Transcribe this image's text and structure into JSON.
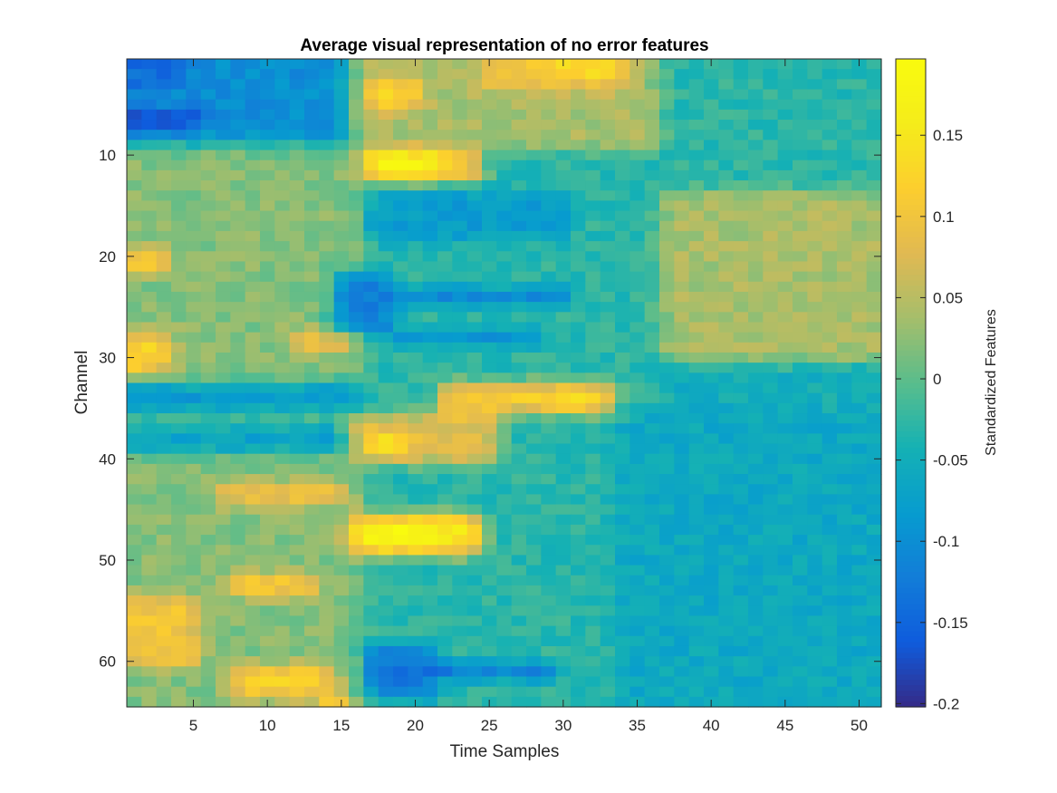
{
  "chart_data": {
    "type": "heatmap",
    "title": "Average visual representation of no error features",
    "xlabel": "Time Samples",
    "ylabel": "Channel",
    "colorbar_label": "Standardized Features",
    "xlim": [
      0.5,
      51.5
    ],
    "ylim": [
      0.5,
      64.5
    ],
    "x_ticks": [
      5,
      10,
      15,
      20,
      25,
      30,
      35,
      40,
      45,
      50
    ],
    "y_ticks": [
      10,
      20,
      30,
      40,
      50,
      60
    ],
    "clim": [
      -0.202,
      0.197
    ],
    "colorbar_ticks": [
      0.15,
      0.1,
      0.05,
      0,
      -0.05,
      -0.1,
      -0.15,
      -0.2
    ],
    "colormap": "parula",
    "n_channels": 64,
    "n_samples": 51,
    "grid": false,
    "features": [
      {
        "type": "base",
        "value": -0.03
      },
      {
        "type": "rect",
        "ch": [
          1,
          8
        ],
        "t": [
          1,
          15
        ],
        "value": -0.1
      },
      {
        "type": "rect",
        "ch": [
          6,
          7
        ],
        "t": [
          1,
          5
        ],
        "value": -0.19
      },
      {
        "type": "rect",
        "ch": [
          1,
          3
        ],
        "t": [
          1,
          4
        ],
        "value": -0.14
      },
      {
        "type": "rect",
        "ch": [
          10,
          64
        ],
        "t": [
          1,
          16
        ],
        "value": 0.02
      },
      {
        "type": "rect",
        "ch": [
          1,
          9
        ],
        "t": [
          16,
          36
        ],
        "value": 0.04
      },
      {
        "type": "rect",
        "ch": [
          1,
          3
        ],
        "t": [
          25,
          34
        ],
        "value": 0.1
      },
      {
        "type": "rect",
        "ch": [
          1,
          2
        ],
        "t": [
          30,
          33
        ],
        "value": 0.13
      },
      {
        "type": "rect",
        "ch": [
          3,
          5
        ],
        "t": [
          17,
          20
        ],
        "value": 0.12
      },
      {
        "type": "rect",
        "ch": [
          10,
          12
        ],
        "t": [
          17,
          22
        ],
        "value": 0.17
      },
      {
        "type": "rect",
        "ch": [
          11,
          12
        ],
        "t": [
          19,
          21
        ],
        "value": 0.19
      },
      {
        "type": "rect",
        "ch": [
          10,
          12
        ],
        "t": [
          22,
          24
        ],
        "value": 0.12
      },
      {
        "type": "rect",
        "ch": [
          14,
          18
        ],
        "t": [
          17,
          30
        ],
        "value": -0.08
      },
      {
        "type": "rect",
        "ch": [
          16,
          64
        ],
        "t": [
          37,
          51
        ],
        "value": -0.05
      },
      {
        "type": "rect",
        "ch": [
          14,
          30
        ],
        "t": [
          37,
          51
        ],
        "value": 0.04
      },
      {
        "type": "rect",
        "ch": [
          22,
          27
        ],
        "t": [
          15,
          18
        ],
        "value": -0.12
      },
      {
        "type": "rect",
        "ch": [
          24,
          24
        ],
        "t": [
          19,
          30
        ],
        "value": -0.17
      },
      {
        "type": "rect",
        "ch": [
          28,
          28
        ],
        "t": [
          19,
          28
        ],
        "value": -0.14
      },
      {
        "type": "rect",
        "ch": [
          33,
          35
        ],
        "t": [
          1,
          16
        ],
        "value": -0.08
      },
      {
        "type": "rect",
        "ch": [
          33,
          35
        ],
        "t": [
          22,
          33
        ],
        "value": 0.11
      },
      {
        "type": "rect",
        "ch": [
          34,
          35
        ],
        "t": [
          29,
          32
        ],
        "value": 0.14
      },
      {
        "type": "rect",
        "ch": [
          37,
          39
        ],
        "t": [
          1,
          16
        ],
        "value": -0.07
      },
      {
        "type": "rect",
        "ch": [
          36,
          40
        ],
        "t": [
          16,
          25
        ],
        "value": 0.08
      },
      {
        "type": "rect",
        "ch": [
          38,
          39
        ],
        "t": [
          17,
          19
        ],
        "value": 0.14
      },
      {
        "type": "rect",
        "ch": [
          43,
          44
        ],
        "t": [
          7,
          15
        ],
        "value": 0.1
      },
      {
        "type": "rect",
        "ch": [
          46,
          49
        ],
        "t": [
          16,
          24
        ],
        "value": 0.15
      },
      {
        "type": "rect",
        "ch": [
          47,
          48
        ],
        "t": [
          17,
          21
        ],
        "value": 0.19
      },
      {
        "type": "rect",
        "ch": [
          20,
          21
        ],
        "t": [
          1,
          3
        ],
        "value": 0.12
      },
      {
        "type": "rect",
        "ch": [
          28,
          31
        ],
        "t": [
          1,
          3
        ],
        "value": 0.12
      },
      {
        "type": "rect",
        "ch": [
          28,
          29
        ],
        "t": [
          12,
          15
        ],
        "value": 0.1
      },
      {
        "type": "rect",
        "ch": [
          52,
          53
        ],
        "t": [
          8,
          13
        ],
        "value": 0.12
      },
      {
        "type": "rect",
        "ch": [
          54,
          60
        ],
        "t": [
          1,
          5
        ],
        "value": 0.1
      },
      {
        "type": "rect",
        "ch": [
          61,
          63
        ],
        "t": [
          8,
          14
        ],
        "value": 0.12
      },
      {
        "type": "rect",
        "ch": [
          59,
          63
        ],
        "t": [
          17,
          21
        ],
        "value": -0.13
      },
      {
        "type": "rect",
        "ch": [
          61,
          61
        ],
        "t": [
          21,
          29
        ],
        "value": -0.17
      },
      {
        "type": "rect",
        "ch": [
          64,
          64
        ],
        "t": [
          14,
          15
        ],
        "value": 0.13
      },
      {
        "type": "rect",
        "ch": [
          36,
          64
        ],
        "t": [
          34,
          51
        ],
        "value": -0.06
      }
    ]
  }
}
